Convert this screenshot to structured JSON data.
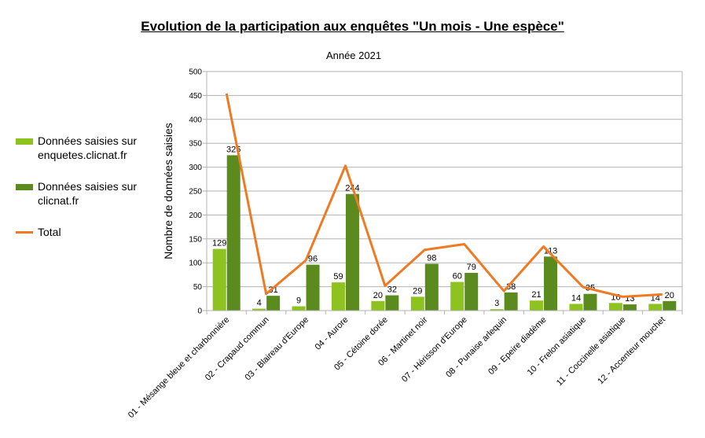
{
  "chart_data": {
    "type": "bar",
    "title": "Evolution de la participation aux enquêtes \"Un mois - Une espèce\"",
    "subtitle": "Année 2021",
    "xlabel": "",
    "ylabel": "Nombre de données saisies",
    "ylim": [
      0,
      500
    ],
    "yticks": [
      "0",
      "50",
      "100",
      "150",
      "200",
      "250",
      "300",
      "350",
      "400",
      "450",
      "500"
    ],
    "grid": true,
    "legend_position": "left",
    "categories": [
      "01 - Mésange bleue et charbonnière",
      "02 - Crapaud commun",
      "03 - Blaireau d'Europe",
      "04 - Aurore",
      "05 - Cétoine dorée",
      "06 - Martinet noir",
      "07 - Hérisson d'Europe",
      "08 - Punaise arlequin",
      "09 - Epeire diadème",
      "10 - Frelon asiatique",
      "11 - Coccinelle asiatique",
      "12 - Accenteur mouchet"
    ],
    "series": [
      {
        "name": "Données saisies sur enquetes.clicnat.fr",
        "type": "bar",
        "color": "#8dc21f",
        "values": [
          129,
          4,
          9,
          59,
          20,
          29,
          60,
          3,
          21,
          14,
          16,
          14
        ]
      },
      {
        "name": "Données saisies sur clicnat.fr",
        "type": "bar",
        "color": "#5b8a1e",
        "values": [
          325,
          31,
          96,
          244,
          32,
          98,
          79,
          38,
          113,
          35,
          13,
          20
        ]
      },
      {
        "name": "Total",
        "type": "line",
        "color": "#f07a24",
        "values": [
          454,
          35,
          105,
          303,
          52,
          127,
          139,
          41,
          134,
          49,
          29,
          34
        ]
      }
    ]
  }
}
